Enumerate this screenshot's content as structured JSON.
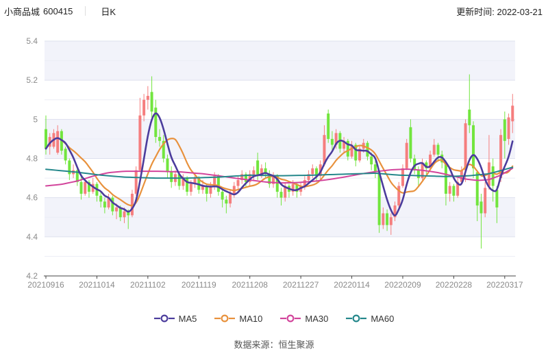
{
  "header": {
    "title": "小商品城",
    "code": "600415",
    "period_label": "日K",
    "update_label": "更新时间: 2022-03-21"
  },
  "footer": {
    "source_label": "数据来源：恒生聚源"
  },
  "legend": [
    {
      "label": "MA5",
      "color": "#4b3c9c"
    },
    {
      "label": "MA10",
      "color": "#e8913c"
    },
    {
      "label": "MA30",
      "color": "#d2449b"
    },
    {
      "label": "MA60",
      "color": "#24878b"
    }
  ],
  "chart_data": {
    "type": "candlestick",
    "title": "小商品城 600415 日K",
    "ylim": [
      4.2,
      5.4
    ],
    "y_ticks": [
      "5.4",
      "5.2",
      "5",
      "4.8",
      "4.6",
      "4.4",
      "4.2"
    ],
    "y_tick_values": [
      5.4,
      5.2,
      5.0,
      4.8,
      4.6,
      4.4,
      4.2
    ],
    "x_tick_labels": [
      "20210916",
      "20211014",
      "20211102",
      "20211119",
      "20211208",
      "20211227",
      "20220114",
      "20220209",
      "20220228",
      "20220317"
    ],
    "x_tick_indices": [
      0,
      13,
      26,
      39,
      52,
      65,
      78,
      91,
      104,
      117
    ],
    "grid": "horizontal-only",
    "legend_position": "bottom-center",
    "colors": {
      "up": "#f57e7e",
      "down": "#72e53e",
      "ma5": "#4b3c9c",
      "ma10": "#e8913c",
      "ma30": "#d2449b",
      "ma60": "#24878b",
      "band": "#f2f3fa",
      "grid_major": "#dde0ee",
      "grid_minor": "#ebedf6",
      "axis": "#444",
      "tick_text": "#8a8a8a"
    },
    "candles_format": [
      "open",
      "high",
      "low",
      "close"
    ],
    "candles": [
      [
        4.95,
        5.02,
        4.82,
        4.85
      ],
      [
        4.86,
        4.93,
        4.82,
        4.91
      ],
      [
        4.86,
        4.95,
        4.85,
        4.93
      ],
      [
        4.83,
        4.97,
        4.82,
        4.94
      ],
      [
        4.94,
        4.95,
        4.82,
        4.84
      ],
      [
        4.85,
        4.86,
        4.77,
        4.79
      ],
      [
        4.79,
        4.8,
        4.69,
        4.72
      ],
      [
        4.72,
        4.77,
        4.7,
        4.74
      ],
      [
        4.74,
        4.75,
        4.66,
        4.68
      ],
      [
        4.68,
        4.72,
        4.59,
        4.62
      ],
      [
        4.62,
        4.7,
        4.61,
        4.68
      ],
      [
        4.68,
        4.69,
        4.6,
        4.63
      ],
      [
        4.63,
        4.7,
        4.62,
        4.67
      ],
      [
        4.67,
        4.68,
        4.58,
        4.61
      ],
      [
        4.61,
        4.63,
        4.55,
        4.58
      ],
      [
        4.58,
        4.6,
        4.52,
        4.55
      ],
      [
        4.55,
        4.62,
        4.54,
        4.6
      ],
      [
        4.6,
        4.61,
        4.51,
        4.53
      ],
      [
        4.53,
        4.57,
        4.49,
        4.55
      ],
      [
        4.55,
        4.56,
        4.48,
        4.5
      ],
      [
        4.5,
        4.55,
        4.47,
        4.53
      ],
      [
        4.53,
        4.54,
        4.44,
        4.51
      ],
      [
        4.51,
        4.64,
        4.5,
        4.62
      ],
      [
        4.62,
        4.76,
        4.61,
        4.74
      ],
      [
        4.74,
        5.11,
        4.73,
        5.02
      ],
      [
        5.02,
        5.13,
        4.99,
        5.1
      ],
      [
        5.1,
        5.17,
        5.05,
        5.12
      ],
      [
        5.14,
        5.22,
        5.01,
        5.04
      ],
      [
        5.06,
        5.1,
        4.88,
        4.91
      ],
      [
        4.91,
        4.95,
        4.86,
        4.89
      ],
      [
        4.89,
        4.92,
        4.78,
        4.8
      ],
      [
        4.8,
        4.82,
        4.7,
        4.73
      ],
      [
        4.73,
        4.76,
        4.65,
        4.68
      ],
      [
        4.68,
        4.74,
        4.66,
        4.72
      ],
      [
        4.72,
        4.73,
        4.64,
        4.66
      ],
      [
        4.66,
        4.72,
        4.64,
        4.7
      ],
      [
        4.7,
        4.71,
        4.61,
        4.63
      ],
      [
        4.63,
        4.69,
        4.61,
        4.67
      ],
      [
        4.67,
        4.72,
        4.65,
        4.7
      ],
      [
        4.7,
        4.71,
        4.62,
        4.64
      ],
      [
        4.64,
        4.69,
        4.62,
        4.66
      ],
      [
        4.66,
        4.67,
        4.58,
        4.62
      ],
      [
        4.62,
        4.68,
        4.6,
        4.66
      ],
      [
        4.66,
        4.73,
        4.64,
        4.71
      ],
      [
        4.71,
        4.72,
        4.61,
        4.63
      ],
      [
        4.63,
        4.64,
        4.55,
        4.59
      ],
      [
        4.59,
        4.61,
        4.52,
        4.57
      ],
      [
        4.57,
        4.64,
        4.55,
        4.62
      ],
      [
        4.62,
        4.68,
        4.6,
        4.66
      ],
      [
        4.66,
        4.71,
        4.64,
        4.69
      ],
      [
        4.69,
        4.74,
        4.67,
        4.72
      ],
      [
        4.72,
        4.73,
        4.65,
        4.68
      ],
      [
        4.68,
        4.74,
        4.66,
        4.72
      ],
      [
        4.71,
        4.76,
        4.69,
        4.74
      ],
      [
        4.79,
        4.83,
        4.69,
        4.71
      ],
      [
        4.71,
        4.77,
        4.7,
        4.75
      ],
      [
        4.75,
        4.78,
        4.7,
        4.72
      ],
      [
        4.72,
        4.74,
        4.65,
        4.67
      ],
      [
        4.67,
        4.73,
        4.65,
        4.71
      ],
      [
        4.71,
        4.72,
        4.6,
        4.63
      ],
      [
        4.63,
        4.65,
        4.56,
        4.6
      ],
      [
        4.6,
        4.68,
        4.58,
        4.66
      ],
      [
        4.66,
        4.67,
        4.6,
        4.63
      ],
      [
        4.63,
        4.69,
        4.61,
        4.67
      ],
      [
        4.67,
        4.68,
        4.6,
        4.63
      ],
      [
        4.63,
        4.68,
        4.61,
        4.66
      ],
      [
        4.66,
        4.71,
        4.64,
        4.69
      ],
      [
        4.69,
        4.74,
        4.67,
        4.72
      ],
      [
        4.72,
        4.77,
        4.7,
        4.75
      ],
      [
        4.75,
        4.76,
        4.68,
        4.71
      ],
      [
        4.71,
        4.79,
        4.69,
        4.77
      ],
      [
        4.77,
        4.97,
        4.76,
        4.92
      ],
      [
        5.03,
        5.05,
        4.88,
        4.9
      ],
      [
        4.9,
        4.94,
        4.84,
        4.87
      ],
      [
        4.87,
        4.95,
        4.85,
        4.93
      ],
      [
        4.93,
        4.94,
        4.83,
        4.85
      ],
      [
        4.85,
        4.91,
        4.83,
        4.89
      ],
      [
        4.89,
        4.9,
        4.79,
        4.81
      ],
      [
        4.81,
        4.89,
        4.8,
        4.87
      ],
      [
        4.87,
        4.88,
        4.76,
        4.79
      ],
      [
        4.79,
        4.87,
        4.78,
        4.85
      ],
      [
        4.85,
        4.9,
        4.83,
        4.88
      ],
      [
        4.88,
        4.89,
        4.79,
        4.81
      ],
      [
        4.81,
        4.83,
        4.74,
        4.77
      ],
      [
        4.77,
        4.79,
        4.7,
        4.73
      ],
      [
        4.73,
        4.74,
        4.42,
        4.46
      ],
      [
        4.46,
        4.55,
        4.44,
        4.52
      ],
      [
        4.52,
        4.54,
        4.43,
        4.46
      ],
      [
        4.46,
        4.52,
        4.41,
        4.5
      ],
      [
        4.5,
        4.58,
        4.48,
        4.56
      ],
      [
        4.56,
        4.68,
        4.55,
        4.66
      ],
      [
        4.66,
        4.77,
        4.65,
        4.75
      ],
      [
        4.75,
        4.9,
        4.74,
        4.88
      ],
      [
        4.96,
        5.0,
        4.78,
        4.8
      ],
      [
        4.8,
        4.82,
        4.72,
        4.74
      ],
      [
        4.74,
        4.76,
        4.66,
        4.7
      ],
      [
        4.7,
        4.8,
        4.69,
        4.78
      ],
      [
        4.78,
        4.79,
        4.72,
        4.75
      ],
      [
        4.75,
        4.84,
        4.74,
        4.82
      ],
      [
        4.82,
        4.9,
        4.81,
        4.87
      ],
      [
        4.87,
        4.88,
        4.79,
        4.82
      ],
      [
        4.82,
        4.84,
        4.75,
        4.78
      ],
      [
        4.78,
        4.79,
        4.56,
        4.62
      ],
      [
        4.62,
        4.68,
        4.58,
        4.66
      ],
      [
        4.66,
        4.67,
        4.58,
        4.61
      ],
      [
        4.61,
        4.7,
        4.6,
        4.68
      ],
      [
        4.68,
        4.76,
        4.67,
        4.74
      ],
      [
        4.74,
        5.0,
        4.68,
        4.98
      ],
      [
        5.05,
        5.23,
        4.93,
        4.97
      ],
      [
        4.97,
        4.99,
        4.7,
        4.75
      ],
      [
        4.73,
        4.74,
        4.48,
        4.56
      ],
      [
        4.58,
        4.62,
        4.34,
        4.52
      ],
      [
        4.52,
        4.68,
        4.5,
        4.65
      ],
      [
        4.66,
        4.92,
        4.64,
        4.78
      ],
      [
        4.76,
        4.8,
        4.58,
        4.66
      ],
      [
        4.64,
        4.66,
        4.47,
        4.55
      ],
      [
        4.7,
        4.95,
        4.68,
        4.92
      ],
      [
        5.0,
        5.04,
        4.8,
        4.89
      ],
      [
        4.9,
        5.03,
        4.87,
        5.01
      ],
      [
        4.99,
        5.13,
        4.93,
        5.07
      ]
    ],
    "series": [
      {
        "name": "MA5",
        "derived_from": "closes",
        "window": 5
      },
      {
        "name": "MA10",
        "derived_from": "closes",
        "window": 10
      },
      {
        "name": "MA30",
        "window": 30
      },
      {
        "name": "MA60",
        "window": 60
      }
    ],
    "ma30_points": [
      [
        0,
        4.66
      ],
      [
        4,
        4.668
      ],
      [
        8,
        4.685
      ],
      [
        12,
        4.71
      ],
      [
        16,
        4.728
      ],
      [
        20,
        4.735
      ],
      [
        28,
        4.735
      ],
      [
        34,
        4.732
      ],
      [
        40,
        4.722
      ],
      [
        44,
        4.712
      ],
      [
        48,
        4.7
      ],
      [
        52,
        4.69
      ],
      [
        56,
        4.68
      ],
      [
        60,
        4.675
      ],
      [
        64,
        4.677
      ],
      [
        68,
        4.683
      ],
      [
        72,
        4.692
      ],
      [
        76,
        4.705
      ],
      [
        80,
        4.72
      ],
      [
        84,
        4.733
      ],
      [
        88,
        4.742
      ],
      [
        92,
        4.746
      ],
      [
        96,
        4.74
      ],
      [
        100,
        4.728
      ],
      [
        104,
        4.71
      ],
      [
        107,
        4.695
      ],
      [
        110,
        4.688
      ],
      [
        113,
        4.692
      ],
      [
        116,
        4.715
      ],
      [
        119,
        4.75
      ]
    ],
    "ma60_points": [
      [
        0,
        4.745
      ],
      [
        8,
        4.73
      ],
      [
        14,
        4.715
      ],
      [
        20,
        4.705
      ],
      [
        28,
        4.7
      ],
      [
        36,
        4.7
      ],
      [
        44,
        4.705
      ],
      [
        52,
        4.715
      ],
      [
        60,
        4.712
      ],
      [
        68,
        4.715
      ],
      [
        76,
        4.72
      ],
      [
        84,
        4.725
      ],
      [
        90,
        4.715
      ],
      [
        96,
        4.712
      ],
      [
        102,
        4.708
      ],
      [
        108,
        4.712
      ],
      [
        113,
        4.722
      ],
      [
        119,
        4.755
      ]
    ]
  }
}
